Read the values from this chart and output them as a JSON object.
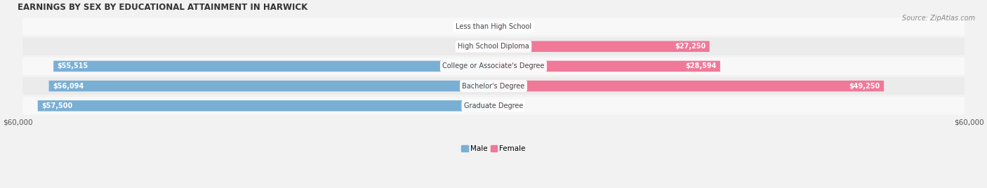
{
  "title": "EARNINGS BY SEX BY EDUCATIONAL ATTAINMENT IN HARWICK",
  "source": "Source: ZipAtlas.com",
  "categories": [
    "Less than High School",
    "High School Diploma",
    "College or Associate's Degree",
    "Bachelor's Degree",
    "Graduate Degree"
  ],
  "male_values": [
    0,
    0,
    55515,
    56094,
    57500
  ],
  "female_values": [
    0,
    27250,
    28594,
    49250,
    0
  ],
  "male_color": "#7aafd4",
  "female_color": "#f07898",
  "male_color_light": "#b0cce8",
  "female_color_light": "#f4afc0",
  "axis_max": 60000,
  "bg_color": "#f2f2f2",
  "row_colors": [
    "#f8f8f8",
    "#ebebeb"
  ],
  "xlabel_left": "$60,000",
  "xlabel_right": "$60,000",
  "legend_male": "Male",
  "legend_female": "Female",
  "title_fontsize": 8.5,
  "source_fontsize": 7,
  "label_fontsize": 7,
  "category_fontsize": 7,
  "zero_stub": 1800
}
